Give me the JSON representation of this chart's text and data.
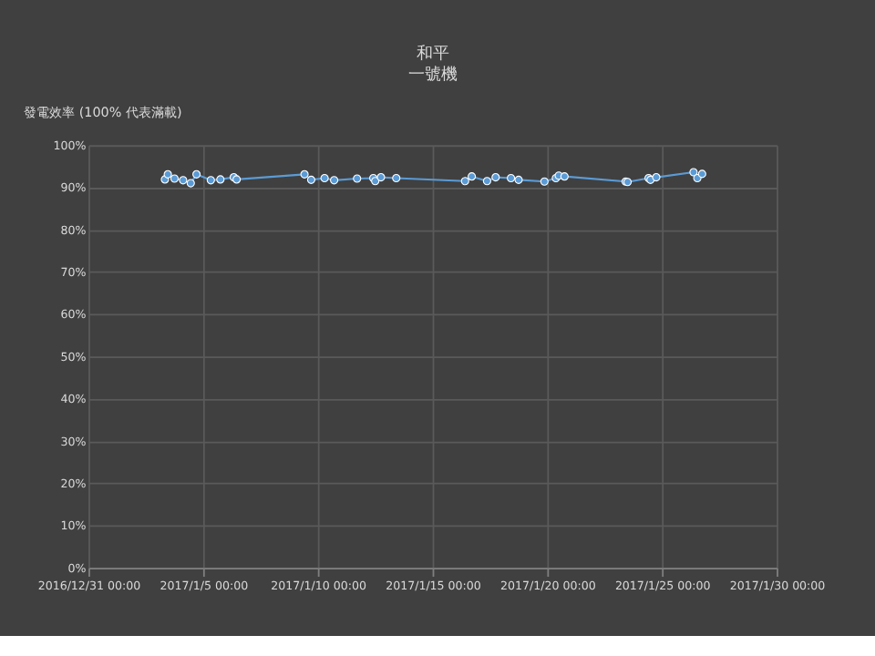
{
  "chart_data": {
    "type": "line",
    "title": "和平",
    "subtitle": "一號機",
    "ylabel": "發電效率 (100% 代表滿載)",
    "x": [
      "2017-01-03T08:00",
      "2017-01-03T11:00",
      "2017-01-03T18:00",
      "2017-01-04T03:00",
      "2017-01-04T11:00",
      "2017-01-04T17:00",
      "2017-01-05T08:00",
      "2017-01-05T18:00",
      "2017-01-06T08:00",
      "2017-01-06T11:00",
      "2017-01-09T10:00",
      "2017-01-09T17:00",
      "2017-01-10T07:00",
      "2017-01-10T17:00",
      "2017-01-11T17:00",
      "2017-01-12T10:00",
      "2017-01-12T12:00",
      "2017-01-12T18:00",
      "2017-01-13T10:00",
      "2017-01-16T10:00",
      "2017-01-16T17:00",
      "2017-01-17T09:00",
      "2017-01-17T18:00",
      "2017-01-18T10:00",
      "2017-01-18T18:00",
      "2017-01-19T21:00",
      "2017-01-20T09:00",
      "2017-01-20T12:00",
      "2017-01-20T18:00",
      "2017-01-23T10:00",
      "2017-01-23T12:00",
      "2017-01-24T10:00",
      "2017-01-24T12:00",
      "2017-01-24T18:00",
      "2017-01-26T09:00",
      "2017-01-26T13:00",
      "2017-01-26T18:00"
    ],
    "series": [
      {
        "color": "#5b9bd5",
        "values": [
          91.9,
          93.1,
          92.1,
          91.7,
          91.0,
          93.1,
          91.7,
          91.9,
          92.4,
          91.9,
          93.1,
          91.8,
          92.2,
          91.7,
          92.1,
          92.2,
          91.5,
          92.4,
          92.2,
          91.5,
          92.6,
          91.5,
          92.4,
          92.2,
          91.8,
          91.4,
          92.2,
          92.8,
          92.6,
          91.4,
          91.3,
          92.2,
          91.8,
          92.4,
          93.6,
          92.2,
          93.2
        ]
      }
    ],
    "xlim": [
      "2016-12-31",
      "2017-01-30"
    ],
    "xticks": [
      {
        "value": "2016-12-31",
        "label": "2016/12/31 00:00"
      },
      {
        "value": "2017-01-05",
        "label": "2017/1/5 00:00"
      },
      {
        "value": "2017-01-10",
        "label": "2017/1/10 00:00"
      },
      {
        "value": "2017-01-15",
        "label": "2017/1/15 00:00"
      },
      {
        "value": "2017-01-20",
        "label": "2017/1/20 00:00"
      },
      {
        "value": "2017-01-25",
        "label": "2017/1/25 00:00"
      },
      {
        "value": "2017-01-30",
        "label": "2017/1/30 00:00"
      }
    ],
    "ylim": [
      0,
      100
    ],
    "yticks": [
      {
        "value": 0,
        "label": "0%"
      },
      {
        "value": 10,
        "label": "10%"
      },
      {
        "value": 20,
        "label": "20%"
      },
      {
        "value": 30,
        "label": "30%"
      },
      {
        "value": 40,
        "label": "40%"
      },
      {
        "value": 50,
        "label": "50%"
      },
      {
        "value": 60,
        "label": "60%"
      },
      {
        "value": 70,
        "label": "70%"
      },
      {
        "value": 80,
        "label": "80%"
      },
      {
        "value": 90,
        "label": "90%"
      },
      {
        "value": 100,
        "label": "100%"
      }
    ],
    "grid": true,
    "marker": "circle",
    "line_style": "solid"
  }
}
